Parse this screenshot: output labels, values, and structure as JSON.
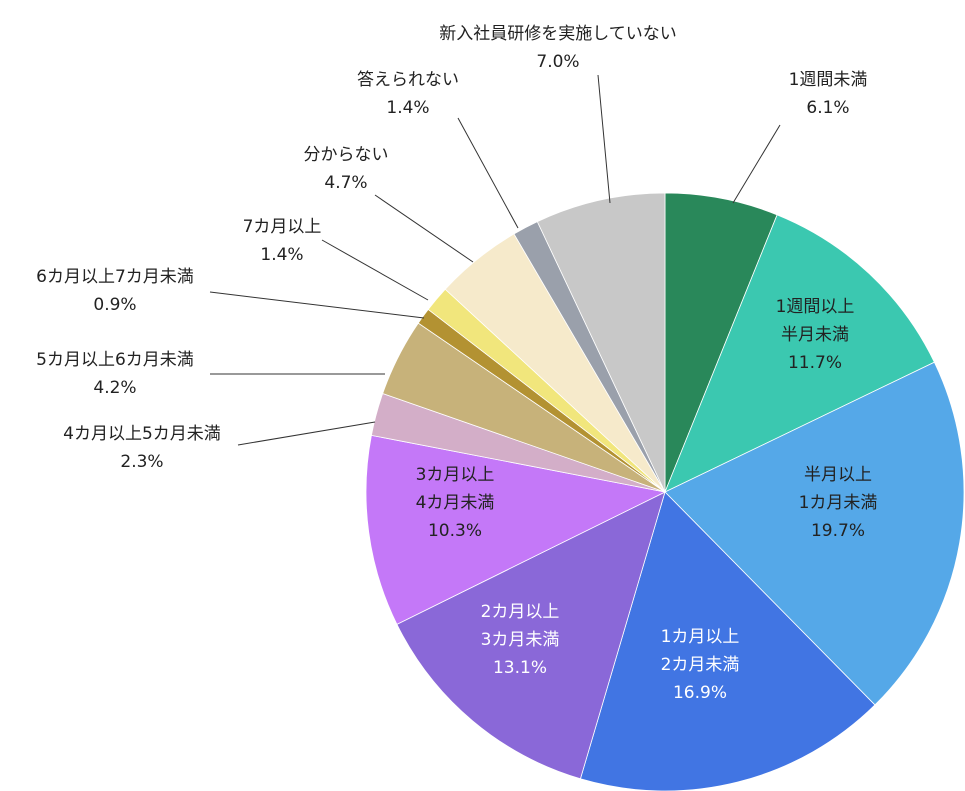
{
  "chart_data": {
    "type": "pie",
    "title": "",
    "start": "top",
    "direction": "clockwise",
    "slices": [
      {
        "label": "1週間未満",
        "value": 6.1,
        "display": "6.1%",
        "color": "#29885a",
        "label_pos": "outside"
      },
      {
        "label": "1週間以上\n半月未満",
        "value": 11.7,
        "display": "11.7%",
        "color": "#3bc8b0",
        "label_pos": "inside"
      },
      {
        "label": "半月以上\n1カ月未満",
        "value": 19.7,
        "display": "19.7%",
        "color": "#55a8e8",
        "label_pos": "inside"
      },
      {
        "label": "1カ月以上\n2カ月未満",
        "value": 16.9,
        "display": "16.9%",
        "color": "#4175e3",
        "label_pos": "inside",
        "text_color": "white"
      },
      {
        "label": "2カ月以上\n3カ月未満",
        "value": 13.1,
        "display": "13.1%",
        "color": "#8a68d8",
        "label_pos": "inside",
        "text_color": "white"
      },
      {
        "label": "3カ月以上\n4カ月未満",
        "value": 10.3,
        "display": "10.3%",
        "color": "#c478f8",
        "label_pos": "inside"
      },
      {
        "label": "4カ月以上5カ月未満",
        "value": 2.3,
        "display": "2.3%",
        "color": "#d3aec8",
        "label_pos": "outside"
      },
      {
        "label": "5カ月以上6カ月未満",
        "value": 4.2,
        "display": "4.2%",
        "color": "#c7b27a",
        "label_pos": "outside"
      },
      {
        "label": "6カ月以上7カ月未満",
        "value": 0.9,
        "display": "0.9%",
        "color": "#b39232",
        "label_pos": "outside"
      },
      {
        "label": "7カ月以上",
        "value": 1.4,
        "display": "1.4%",
        "color": "#f1e67c",
        "label_pos": "outside"
      },
      {
        "label": "分からない",
        "value": 4.7,
        "display": "4.7%",
        "color": "#f6eacb",
        "label_pos": "outside"
      },
      {
        "label": "答えられない",
        "value": 1.4,
        "display": "1.4%",
        "color": "#9aa0ab",
        "label_pos": "outside"
      },
      {
        "label": "新入社員研修を実施していない",
        "value": 7.0,
        "display": "7.0%",
        "color": "#c8c8c8",
        "label_pos": "outside"
      }
    ]
  }
}
